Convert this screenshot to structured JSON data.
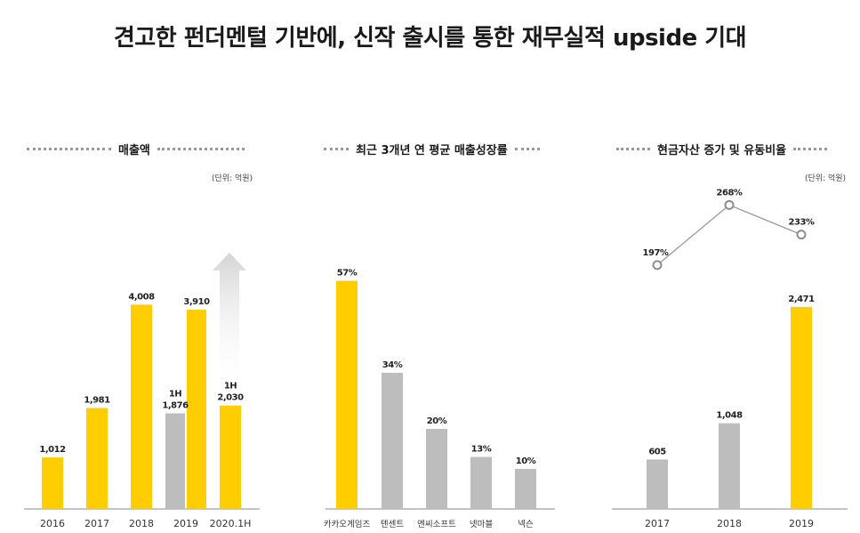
{
  "title": "견고한 펀더멘털 기반에, 신작 출시를 통한 재무실적 upside 기대",
  "colors": {
    "yellow": "#FFCD00",
    "gray": "#BDBDBD",
    "line": "#999999"
  },
  "chart_data": [
    {
      "type": "bar",
      "title": "매출액",
      "unit": "(단위: 억원)",
      "categories": [
        "2016",
        "2017",
        "2018",
        "2019",
        "2020.1H"
      ],
      "series": [
        {
          "values": [
            1012,
            1981,
            4008,
            3910,
            null
          ],
          "color": "#FFCD00"
        },
        {
          "values": [
            null,
            null,
            null,
            1876,
            null
          ],
          "color": "#BDBDBD"
        },
        {
          "values": [
            null,
            null,
            null,
            null,
            2030
          ],
          "color": "#FFCD00"
        }
      ],
      "data_labels": [
        "1,012",
        "1,981",
        "4,008",
        "1,876",
        "3,910",
        "2,030"
      ],
      "half_year_tag": "1H",
      "annotation": "upward-arrow",
      "ylim": [
        0,
        4800
      ]
    },
    {
      "type": "bar",
      "title": "최근 3개년 연 평균 매출성장률",
      "categories": [
        "카카오게임즈",
        "텐센트",
        "엔씨소프트",
        "넷마블",
        "넥슨"
      ],
      "values": [
        57,
        34,
        20,
        13,
        10
      ],
      "data_labels": [
        "57%",
        "34%",
        "20%",
        "13%",
        "10%"
      ],
      "colors": [
        "#FFCD00",
        "#BDBDBD",
        "#BDBDBD",
        "#BDBDBD",
        "#BDBDBD"
      ],
      "ylim": [
        0,
        70
      ]
    },
    {
      "type": "bar",
      "title": "현금자산 증가 및 유동비율",
      "unit": "(단위: 억원)",
      "categories": [
        "2017",
        "2018",
        "2019"
      ],
      "values": [
        605,
        1048,
        2471
      ],
      "data_labels": [
        "605",
        "1,048",
        "2,471"
      ],
      "colors": [
        "#BDBDBD",
        "#BDBDBD",
        "#FFCD00"
      ],
      "ylim": [
        0,
        3100
      ],
      "line_series": {
        "values": [
          197,
          268,
          233
        ],
        "data_labels": [
          "197%",
          "268%",
          "233%"
        ],
        "ylim": [
          100,
          300
        ]
      }
    }
  ]
}
